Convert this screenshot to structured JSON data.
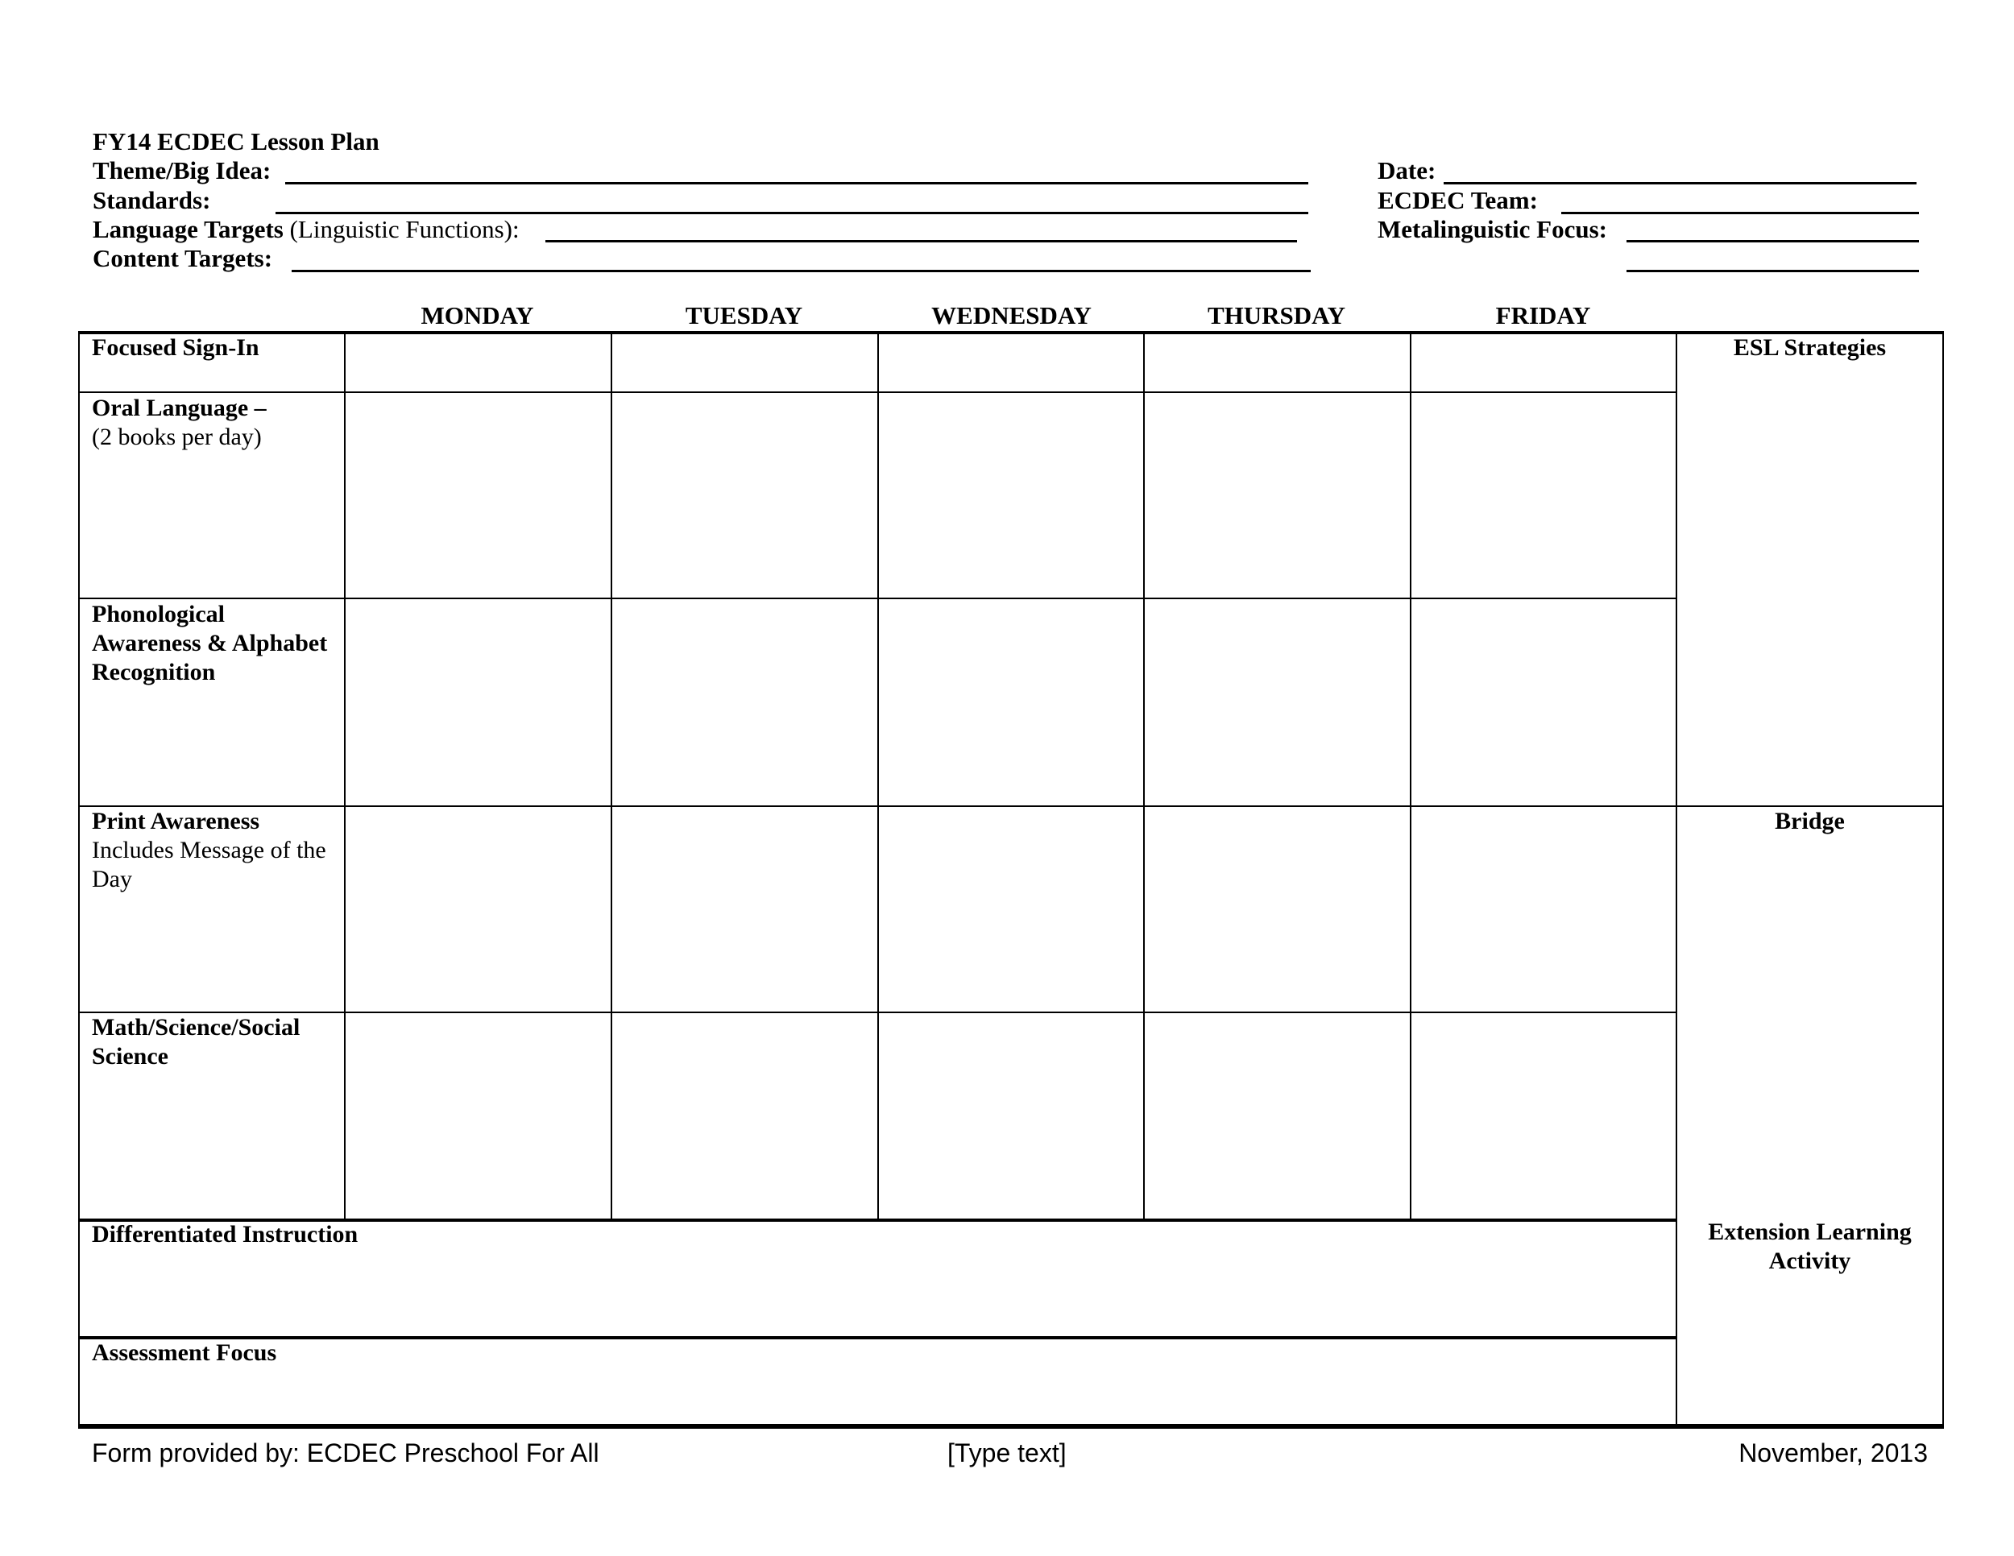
{
  "header": {
    "title": "FY14 ECDEC Lesson Plan",
    "left_fields": [
      {
        "label": "Theme/Big Idea:",
        "value": ""
      },
      {
        "label": "Standards:",
        "value": ""
      },
      {
        "label": "Language Targets",
        "label_suffix": " (Linguistic Functions):",
        "value": ""
      },
      {
        "label": "Content Targets:",
        "value": ""
      }
    ],
    "right_fields": [
      {
        "label": "Date:",
        "value": ""
      },
      {
        "label": "ECDEC Team:",
        "value": ""
      },
      {
        "label": "Metalinguistic Focus:",
        "value": ""
      }
    ]
  },
  "table": {
    "days": [
      "MONDAY",
      "TUESDAY",
      "WEDNESDAY",
      "THURSDAY",
      "FRIDAY"
    ],
    "rows": [
      {
        "title": "Focused Sign-In",
        "subtitle": ""
      },
      {
        "title": "Oral Language –",
        "subtitle": "(2 books per day)"
      },
      {
        "title": "Phonological Awareness & Alphabet Recognition",
        "subtitle": ""
      },
      {
        "title": "Print Awareness",
        "subtitle": "Includes Message of the Day"
      },
      {
        "title": "Math/Science/Social Science",
        "subtitle": ""
      }
    ],
    "wide_rows": [
      "Differentiated Instruction",
      "Assessment Focus"
    ],
    "side": {
      "esl": "ESL Strategies",
      "bridge": "Bridge",
      "extension": "Extension Learning Activity"
    }
  },
  "footer": {
    "left": "Form provided by: ECDEC Preschool For All",
    "center": "[Type text]",
    "right": "November, 2013"
  }
}
